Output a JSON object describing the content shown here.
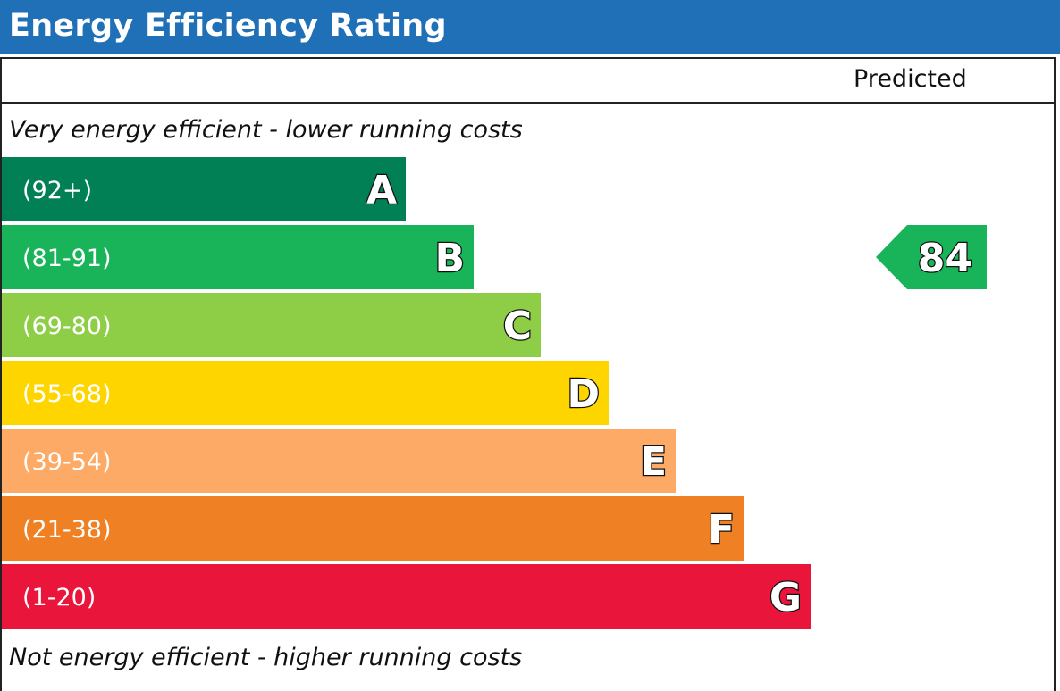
{
  "title": "Energy Efficiency Rating",
  "column_header": "Predicted",
  "top_caption": "Very energy efficient - lower running costs",
  "bottom_caption": "Not energy efficient - higher running costs",
  "chart_data": {
    "type": "bar",
    "bands": [
      {
        "letter": "A",
        "range": "(92+)",
        "color": "#008054"
      },
      {
        "letter": "B",
        "range": "(81-91)",
        "color": "#19b459"
      },
      {
        "letter": "C",
        "range": "(69-80)",
        "color": "#8dce46"
      },
      {
        "letter": "D",
        "range": "(55-68)",
        "color": "#ffd500"
      },
      {
        "letter": "E",
        "range": "(39-54)",
        "color": "#fcaa65"
      },
      {
        "letter": "F",
        "range": "(21-38)",
        "color": "#ef8023"
      },
      {
        "letter": "G",
        "range": "(1-20)",
        "color": "#e9153b"
      }
    ],
    "predicted": {
      "value": "84",
      "band": "B",
      "color": "#19b459"
    }
  }
}
